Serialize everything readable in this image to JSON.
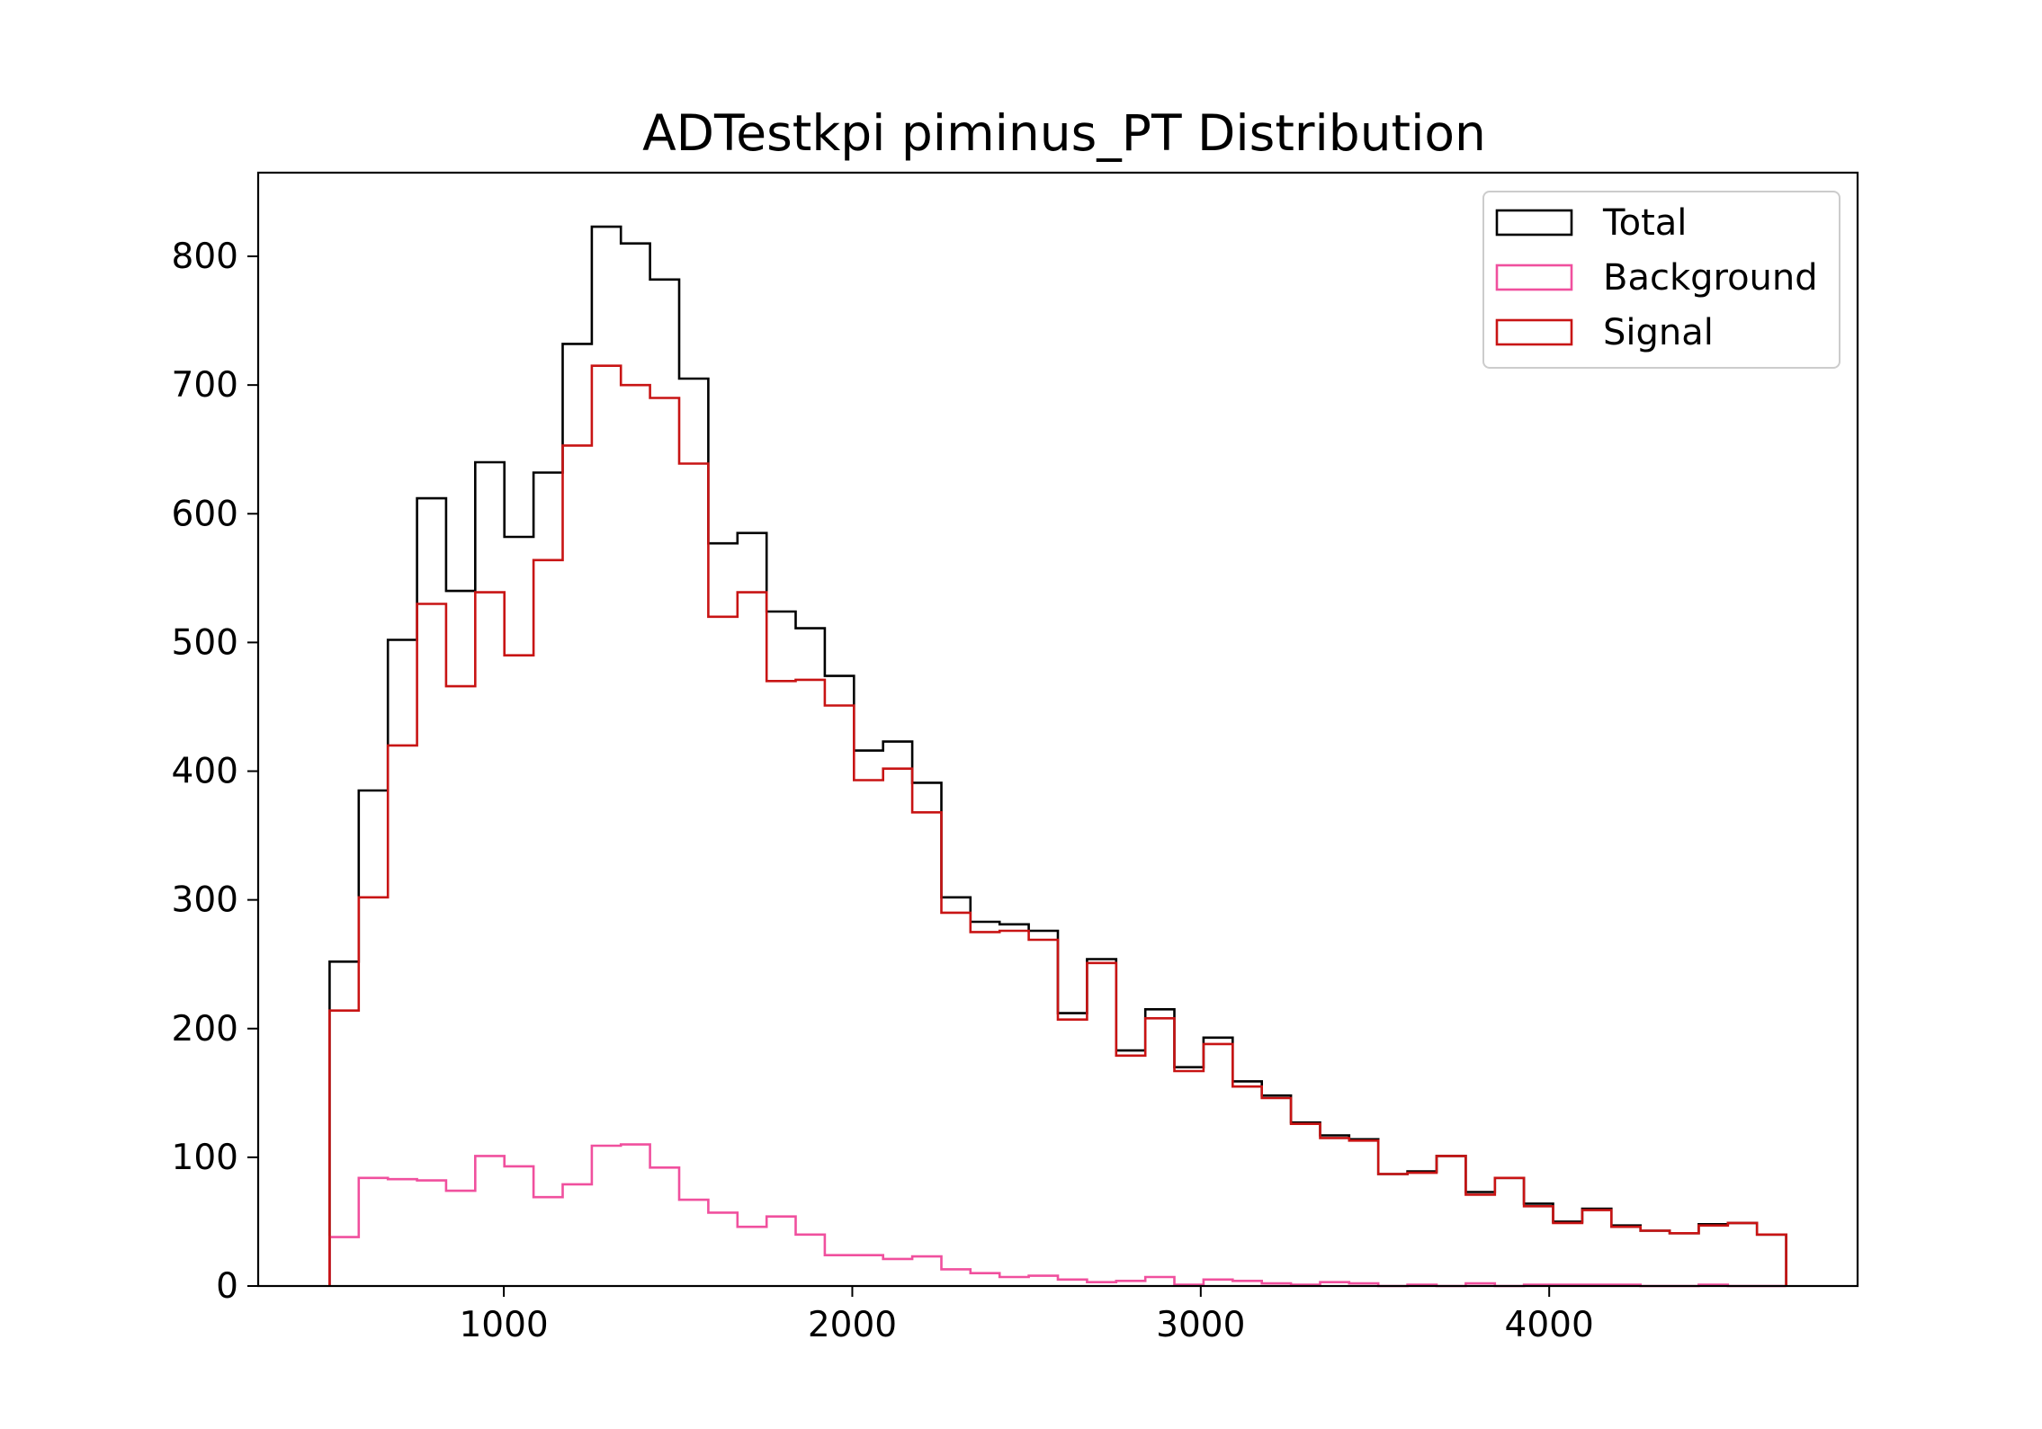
{
  "chart_data": {
    "type": "histogram",
    "title": "ADTestkpi piminus_PT Distribution",
    "xlabel": "",
    "ylabel": "",
    "xlim": [
      295,
      4885
    ],
    "ylim": [
      0,
      865
    ],
    "x_ticks": [
      1000,
      2000,
      3000,
      4000
    ],
    "y_ticks": [
      0,
      100,
      200,
      300,
      400,
      500,
      600,
      700,
      800
    ],
    "legend_position": "top-right",
    "grid": false,
    "bin_start": 500,
    "bin_width": 83.6,
    "series": [
      {
        "name": "Total",
        "color": "#000000",
        "values": [
          252,
          385,
          502,
          612,
          540,
          640,
          582,
          632,
          732,
          823,
          810,
          782,
          705,
          577,
          585,
          524,
          511,
          474,
          416,
          423,
          391,
          302,
          283,
          281,
          276,
          212,
          254,
          183,
          215,
          170,
          193,
          159,
          148,
          127,
          117,
          114,
          87,
          89,
          101,
          73,
          84,
          64,
          50,
          60,
          47,
          43,
          41,
          48,
          49,
          40
        ]
      },
      {
        "name": "Background",
        "color": "#f0509e",
        "values": [
          38,
          84,
          83,
          82,
          74,
          101,
          93,
          69,
          79,
          109,
          110,
          92,
          67,
          57,
          46,
          54,
          40,
          24,
          24,
          21,
          23,
          13,
          10,
          7,
          8,
          5,
          3,
          4,
          7,
          1,
          5,
          4,
          2,
          1,
          3,
          2,
          0,
          1,
          0,
          2,
          0,
          1,
          1,
          1,
          1,
          0,
          0,
          1,
          0,
          0
        ]
      },
      {
        "name": "Signal",
        "color": "#c81414",
        "values": [
          214,
          302,
          420,
          530,
          466,
          539,
          490,
          564,
          653,
          715,
          700,
          690,
          639,
          520,
          539,
          470,
          471,
          451,
          393,
          402,
          368,
          290,
          275,
          276,
          269,
          207,
          251,
          179,
          208,
          167,
          188,
          155,
          146,
          126,
          115,
          113,
          87,
          88,
          101,
          71,
          84,
          62,
          49,
          59,
          46,
          43,
          41,
          47,
          49,
          40
        ]
      }
    ]
  }
}
